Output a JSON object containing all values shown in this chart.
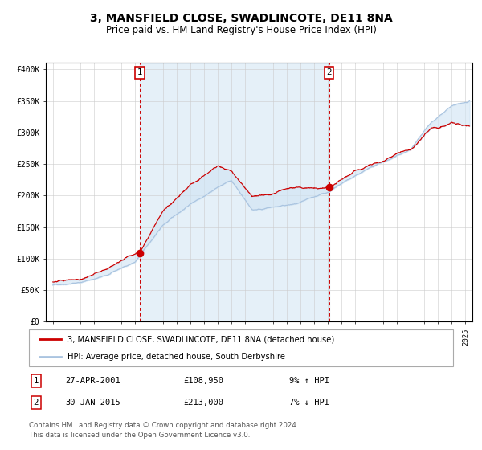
{
  "title": "3, MANSFIELD CLOSE, SWADLINCOTE, DE11 8NA",
  "subtitle": "Price paid vs. HM Land Registry's House Price Index (HPI)",
  "title_fontsize": 10,
  "subtitle_fontsize": 8.5,
  "ylabel_ticks": [
    "£0",
    "£50K",
    "£100K",
    "£150K",
    "£200K",
    "£250K",
    "£300K",
    "£350K",
    "£400K"
  ],
  "ylim": [
    0,
    410000
  ],
  "xlim_start": 1994.5,
  "xlim_end": 2025.5,
  "hpi_color": "#aac4e0",
  "hpi_fill_color": "#d0e4f4",
  "price_color": "#cc0000",
  "marker1_x": 2001.32,
  "marker1_y": 108950,
  "marker2_x": 2015.08,
  "marker2_y": 213000,
  "vline1_x": 2001.32,
  "vline2_x": 2015.08,
  "annotation1_label": "1",
  "annotation2_label": "2",
  "legend_line1": "3, MANSFIELD CLOSE, SWADLINCOTE, DE11 8NA (detached house)",
  "legend_line2": "HPI: Average price, detached house, South Derbyshire",
  "table_row1_num": "1",
  "table_row1_date": "27-APR-2001",
  "table_row1_price": "£108,950",
  "table_row1_hpi": "9% ↑ HPI",
  "table_row2_num": "2",
  "table_row2_date": "30-JAN-2015",
  "table_row2_price": "£213,000",
  "table_row2_hpi": "7% ↓ HPI",
  "footer": "Contains HM Land Registry data © Crown copyright and database right 2024.\nThis data is licensed under the Open Government Licence v3.0."
}
